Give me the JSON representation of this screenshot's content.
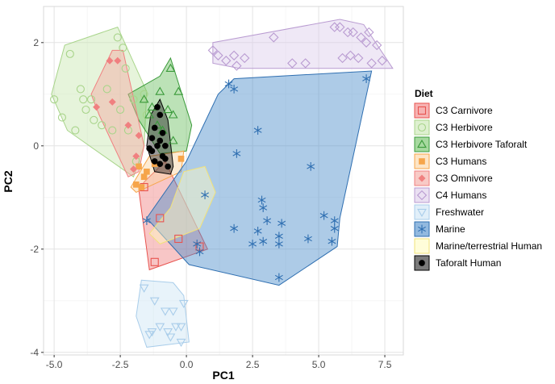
{
  "chart_data": {
    "type": "scatter",
    "title": "",
    "xlabel": "PC1",
    "ylabel": "PC2",
    "xlim": [
      -5.4,
      8.2
    ],
    "ylim": [
      -4.05,
      2.7
    ],
    "xticks": [
      -5.0,
      -2.5,
      0.0,
      2.5,
      5.0,
      7.5
    ],
    "xtick_labels": [
      "-5.0",
      "-2.5",
      "0.0",
      "2.5",
      "5.0",
      "7.5"
    ],
    "yticks": [
      2,
      0,
      -2,
      -4
    ],
    "ytick_labels": [
      "2",
      "0",
      "-2",
      "-4"
    ],
    "grid": true,
    "legend": {
      "title": "Diet",
      "placement": "right"
    },
    "series": [
      {
        "name": "C3 Carnivore",
        "marker": "square-open",
        "color": "#e8534f",
        "fill": "#f08080",
        "points": [
          [
            -1.2,
            -2.25
          ],
          [
            -0.3,
            -1.8
          ],
          [
            0.5,
            -1.95
          ],
          [
            -1.0,
            -1.4
          ],
          [
            -1.6,
            -0.8
          ]
        ],
        "hull": [
          [
            -1.6,
            -0.7
          ],
          [
            -1.8,
            -0.85
          ],
          [
            -1.4,
            -2.4
          ],
          [
            0.8,
            -2.0
          ],
          [
            -0.8,
            -0.3
          ]
        ]
      },
      {
        "name": "C3 Herbivore",
        "marker": "circle-open",
        "color": "#a8d48a",
        "fill": "#c8e6b0",
        "points": [
          [
            -4.4,
            1.78
          ],
          [
            -5.0,
            0.9
          ],
          [
            -4.7,
            0.55
          ],
          [
            -4.0,
            1.1
          ],
          [
            -3.8,
            0.7
          ],
          [
            -3.5,
            0.5
          ],
          [
            -3.0,
            1.1
          ],
          [
            -2.6,
            2.1
          ],
          [
            -2.3,
            1.5
          ],
          [
            -2.0,
            0.9
          ],
          [
            -1.5,
            0.6
          ],
          [
            -3.2,
            0.4
          ],
          [
            -2.8,
            0.3
          ],
          [
            -4.2,
            0.3
          ],
          [
            -1.6,
            1.0
          ],
          [
            -2.4,
            1.9
          ],
          [
            -3.9,
            0.9
          ],
          [
            -2.2,
            0.3
          ],
          [
            -1.9,
            -0.3
          ],
          [
            -3.6,
            0.9
          ],
          [
            -2.5,
            0.7
          ]
        ],
        "hull": [
          [
            -5.1,
            1.0
          ],
          [
            -4.6,
            1.95
          ],
          [
            -2.6,
            2.3
          ],
          [
            -1.5,
            1.05
          ],
          [
            -1.6,
            0.0
          ],
          [
            -2.0,
            -0.6
          ],
          [
            -4.5,
            0.3
          ]
        ]
      },
      {
        "name": "C3 Herbivore Taforalt",
        "marker": "triangle-open",
        "color": "#3a9a3a",
        "fill": "#6abf5f",
        "points": [
          [
            -0.6,
            1.5
          ],
          [
            -1.0,
            1.05
          ],
          [
            -0.7,
            0.7
          ],
          [
            -0.5,
            0.6
          ],
          [
            -0.3,
            1.05
          ],
          [
            -1.3,
            0.75
          ],
          [
            -1.4,
            0.6
          ],
          [
            -0.5,
            0.1
          ],
          [
            -0.9,
            0.3
          ],
          [
            -1.1,
            0.4
          ],
          [
            -1.6,
            0.9
          ]
        ],
        "hull": [
          [
            -2.2,
            1.0
          ],
          [
            -1.0,
            1.35
          ],
          [
            -0.6,
            1.7
          ],
          [
            0.2,
            0.4
          ],
          [
            0.0,
            -0.1
          ],
          [
            -1.0,
            -0.15
          ],
          [
            -1.8,
            0.5
          ]
        ]
      },
      {
        "name": "C3 Humans",
        "marker": "square-filled",
        "color": "#f6a54a",
        "fill": "#fbd3a0",
        "points": [
          [
            -1.9,
            -0.75
          ],
          [
            -1.7,
            -0.8
          ],
          [
            -1.5,
            -0.5
          ],
          [
            -1.2,
            -0.35
          ],
          [
            -0.2,
            -0.25
          ],
          [
            -1.8,
            -0.4
          ],
          [
            -1.6,
            -0.6
          ]
        ],
        "hull": [
          [
            -2.1,
            -0.8
          ],
          [
            -1.9,
            -0.9
          ],
          [
            -0.2,
            -0.5
          ],
          [
            -0.1,
            -0.1
          ],
          [
            -1.4,
            -0.2
          ]
        ]
      },
      {
        "name": "C3 Omnivore",
        "marker": "diamond-filled",
        "color": "#f08080",
        "fill": "#f4a6a0",
        "points": [
          [
            -2.6,
            1.65
          ],
          [
            -2.9,
            1.65
          ],
          [
            -3.4,
            0.75
          ],
          [
            -2.8,
            0.85
          ],
          [
            -2.2,
            0.4
          ],
          [
            -2.0,
            -0.45
          ],
          [
            -1.8,
            0.2
          ],
          [
            -1.9,
            -0.2
          ]
        ],
        "hull": [
          [
            -3.6,
            1.0
          ],
          [
            -2.8,
            1.85
          ],
          [
            -2.4,
            1.85
          ],
          [
            -1.6,
            0.0
          ],
          [
            -1.8,
            -0.5
          ],
          [
            -2.2,
            -0.6
          ],
          [
            -3.3,
            0.6
          ]
        ]
      },
      {
        "name": "C4 Humans",
        "marker": "diamond-open",
        "color": "#b99bd1",
        "fill": "#dccbea",
        "points": [
          [
            1.0,
            1.85
          ],
          [
            1.2,
            1.75
          ],
          [
            1.5,
            1.65
          ],
          [
            1.8,
            1.75
          ],
          [
            1.9,
            1.55
          ],
          [
            2.2,
            1.7
          ],
          [
            3.3,
            2.1
          ],
          [
            4.0,
            1.6
          ],
          [
            4.5,
            1.6
          ],
          [
            5.8,
            2.3
          ],
          [
            6.1,
            2.2
          ],
          [
            6.3,
            2.2
          ],
          [
            6.8,
            2.0
          ],
          [
            7.2,
            1.95
          ],
          [
            7.4,
            1.65
          ],
          [
            5.9,
            1.7
          ],
          [
            6.5,
            1.7
          ],
          [
            5.6,
            2.3
          ],
          [
            6.6,
            2.1
          ],
          [
            7.0,
            1.6
          ],
          [
            6.2,
            1.75
          ],
          [
            6.9,
            2.2
          ]
        ],
        "hull": [
          [
            1.0,
            2.0
          ],
          [
            5.8,
            2.45
          ],
          [
            6.7,
            2.35
          ],
          [
            7.8,
            1.5
          ],
          [
            2.0,
            1.5
          ],
          [
            1.0,
            1.6
          ]
        ]
      },
      {
        "name": "Freshwater",
        "marker": "triangle-down-open",
        "color": "#a9cdea",
        "fill": "#cde4f5",
        "points": [
          [
            -1.6,
            -2.75
          ],
          [
            -1.2,
            -3.0
          ],
          [
            -0.8,
            -3.2
          ],
          [
            -0.5,
            -3.2
          ],
          [
            -1.0,
            -3.5
          ],
          [
            -0.4,
            -3.5
          ],
          [
            -0.2,
            -3.5
          ],
          [
            -1.3,
            -3.6
          ],
          [
            -0.7,
            -3.6
          ],
          [
            -0.2,
            -3.8
          ],
          [
            -0.1,
            -3.05
          ],
          [
            -1.4,
            -3.65
          ],
          [
            -0.6,
            -3.7
          ]
        ],
        "hull": [
          [
            -1.7,
            -2.6
          ],
          [
            -0.5,
            -2.65
          ],
          [
            -0.1,
            -2.9
          ],
          [
            0.1,
            -3.8
          ],
          [
            -1.5,
            -3.9
          ],
          [
            -1.9,
            -3.3
          ]
        ]
      },
      {
        "name": "Marine",
        "marker": "asterisk",
        "color": "#2f6fb1",
        "fill": "#4a8bc9",
        "points": [
          [
            -1.5,
            -1.45
          ],
          [
            0.7,
            -0.95
          ],
          [
            1.6,
            1.2
          ],
          [
            1.8,
            1.1
          ],
          [
            1.9,
            -0.15
          ],
          [
            2.7,
            0.3
          ],
          [
            2.85,
            -1.05
          ],
          [
            2.9,
            -1.2
          ],
          [
            3.05,
            -1.45
          ],
          [
            1.8,
            -1.6
          ],
          [
            2.7,
            -1.65
          ],
          [
            2.5,
            -1.9
          ],
          [
            2.9,
            -1.85
          ],
          [
            3.5,
            -1.75
          ],
          [
            3.6,
            -1.5
          ],
          [
            3.5,
            -1.9
          ],
          [
            3.5,
            -2.55
          ],
          [
            4.7,
            -0.4
          ],
          [
            5.2,
            -1.35
          ],
          [
            4.6,
            -1.8
          ],
          [
            5.6,
            -1.45
          ],
          [
            5.6,
            -1.6
          ],
          [
            5.5,
            -1.85
          ],
          [
            6.8,
            1.3
          ],
          [
            0.5,
            -2.05
          ],
          [
            0.4,
            -1.9
          ]
        ],
        "hull": [
          [
            -1.5,
            -1.4
          ],
          [
            0.1,
            -2.3
          ],
          [
            3.5,
            -2.7
          ],
          [
            5.7,
            -1.95
          ],
          [
            5.8,
            -1.4
          ],
          [
            7.0,
            1.45
          ],
          [
            1.8,
            1.3
          ],
          [
            1.2,
            1.0
          ],
          [
            0.0,
            -0.3
          ]
        ]
      },
      {
        "name": "Marine/terrestrial Human",
        "marker": "none",
        "color": "#ffff99",
        "fill": "#fffbc0",
        "points": [],
        "hull": [
          [
            -0.1,
            -0.5
          ],
          [
            -0.6,
            -1.2
          ],
          [
            -1.4,
            -1.7
          ],
          [
            -1.0,
            -1.9
          ],
          [
            0.5,
            -1.6
          ],
          [
            1.1,
            -0.9
          ],
          [
            0.7,
            -0.4
          ]
        ]
      },
      {
        "name": "Taforalt Human",
        "marker": "circle-filled",
        "color": "#000000",
        "fill": "#222222",
        "points": [
          [
            -1.1,
            0.75
          ],
          [
            -1.0,
            0.6
          ],
          [
            -1.2,
            0.35
          ],
          [
            -0.9,
            0.25
          ],
          [
            -1.3,
            0.15
          ],
          [
            -1.1,
            0.0
          ],
          [
            -0.8,
            0.0
          ],
          [
            -1.3,
            -0.1
          ],
          [
            -0.9,
            -0.2
          ],
          [
            -1.0,
            -0.35
          ],
          [
            -1.2,
            -0.3
          ],
          [
            -0.7,
            -0.4
          ],
          [
            -0.8,
            -0.25
          ],
          [
            -1.4,
            -0.05
          ],
          [
            -1.0,
            0.1
          ]
        ],
        "hull": [
          [
            -1.35,
            0.6
          ],
          [
            -1.0,
            0.9
          ],
          [
            -0.7,
            0.5
          ],
          [
            -0.5,
            -0.4
          ],
          [
            -0.6,
            -0.55
          ],
          [
            -1.2,
            -0.5
          ],
          [
            -1.5,
            0.0
          ]
        ]
      }
    ]
  }
}
